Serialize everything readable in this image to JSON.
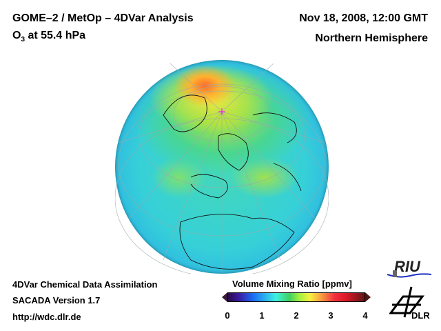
{
  "header": {
    "title": "GOME–2 / MetOp – 4DVar Analysis",
    "species_prefix": "O",
    "species_subscript": "3",
    "species_suffix": " at 55.4 hPa",
    "datetime": "Nov 18, 2008, 12:00 GMT",
    "region": "Northern Hemisphere"
  },
  "footer": {
    "line1": "4DVar Chemical Data Assimilation",
    "line2": "SACADA Version 1.7",
    "line3": "http://wdc.dlr.de"
  },
  "colorbar": {
    "title": "Volume Mixing Ratio [ppmv]",
    "ticks": [
      "0",
      "1",
      "2",
      "3",
      "4"
    ],
    "range": [
      0,
      4
    ]
  },
  "logos": {
    "riu": "RIU",
    "dlr": "DLR"
  }
}
